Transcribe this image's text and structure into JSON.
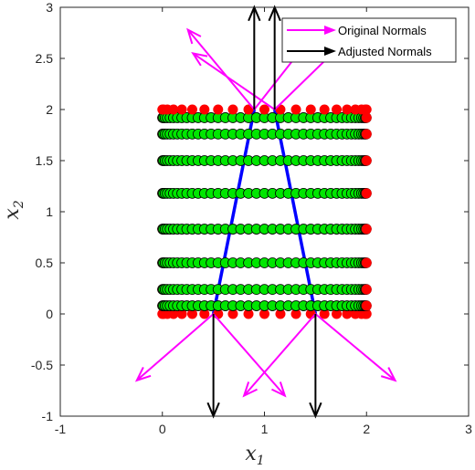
{
  "chart_data": {
    "type": "scatter",
    "xlim": [
      -1,
      3
    ],
    "ylim": [
      -1,
      3
    ],
    "xticks": [
      "-1",
      "0",
      "1",
      "2",
      "3"
    ],
    "yticks": [
      "-1",
      "-0.5",
      "0",
      "0.5",
      "1",
      "1.5",
      "2",
      "2.5",
      "3"
    ],
    "xtick_values": [
      -1,
      0,
      1,
      2,
      3
    ],
    "ytick_values": [
      -1,
      -0.5,
      0,
      0.5,
      1,
      1.5,
      2,
      2.5,
      3
    ],
    "xlabel": "x",
    "xlabel_sub": "1",
    "ylabel": "x",
    "ylabel_sub": "2",
    "grid": false,
    "legend_position": "top-right",
    "colors": {
      "red_points": "#ff0000",
      "green_points": "#00e600",
      "blue_line": "#0000ff",
      "original_normals": "#ff00ff",
      "adjusted_normals": "#000000",
      "axes": "#262626"
    },
    "row_y": [
      0,
      0.08,
      0.24,
      0.5,
      0.83,
      1.18,
      1.5,
      1.76,
      1.92,
      2
    ],
    "x_span": [
      0,
      2
    ],
    "red_points_description": "row ends and full rows at y=0 and y=2",
    "blue_boundary": [
      {
        "name": "left edge",
        "x": [
          0.5,
          0.9
        ],
        "y": [
          0,
          2
        ]
      },
      {
        "name": "right edge",
        "x": [
          1.5,
          1.1
        ],
        "y": [
          0,
          2
        ]
      }
    ],
    "series": [
      {
        "name": "Original Normals",
        "arrows": [
          {
            "x0": 0.5,
            "y0": 0,
            "x1": -0.25,
            "y1": -0.65
          },
          {
            "x0": 0.5,
            "y0": 0,
            "x1": 1.2,
            "y1": -0.8
          },
          {
            "x0": 1.5,
            "y0": 0,
            "x1": 0.8,
            "y1": -0.8
          },
          {
            "x0": 1.5,
            "y0": 0,
            "x1": 2.28,
            "y1": -0.65
          },
          {
            "x0": 0.9,
            "y0": 2,
            "x1": 0.25,
            "y1": 2.78
          },
          {
            "x0": 0.9,
            "y0": 2,
            "x1": 1.45,
            "y1": 2.7
          },
          {
            "x0": 1.1,
            "y0": 2,
            "x1": 0.3,
            "y1": 2.55
          },
          {
            "x0": 1.1,
            "y0": 2,
            "x1": 1.8,
            "y1": 2.68
          }
        ]
      },
      {
        "name": "Adjusted Normals",
        "arrows": [
          {
            "x0": 0.5,
            "y0": 0,
            "x1": 0.5,
            "y1": -1
          },
          {
            "x0": 1.5,
            "y0": 0,
            "x1": 1.5,
            "y1": -1
          },
          {
            "x0": 0.9,
            "y0": 2,
            "x1": 0.9,
            "y1": 3
          },
          {
            "x0": 1.1,
            "y0": 2,
            "x1": 1.1,
            "y1": 3
          }
        ]
      }
    ]
  }
}
